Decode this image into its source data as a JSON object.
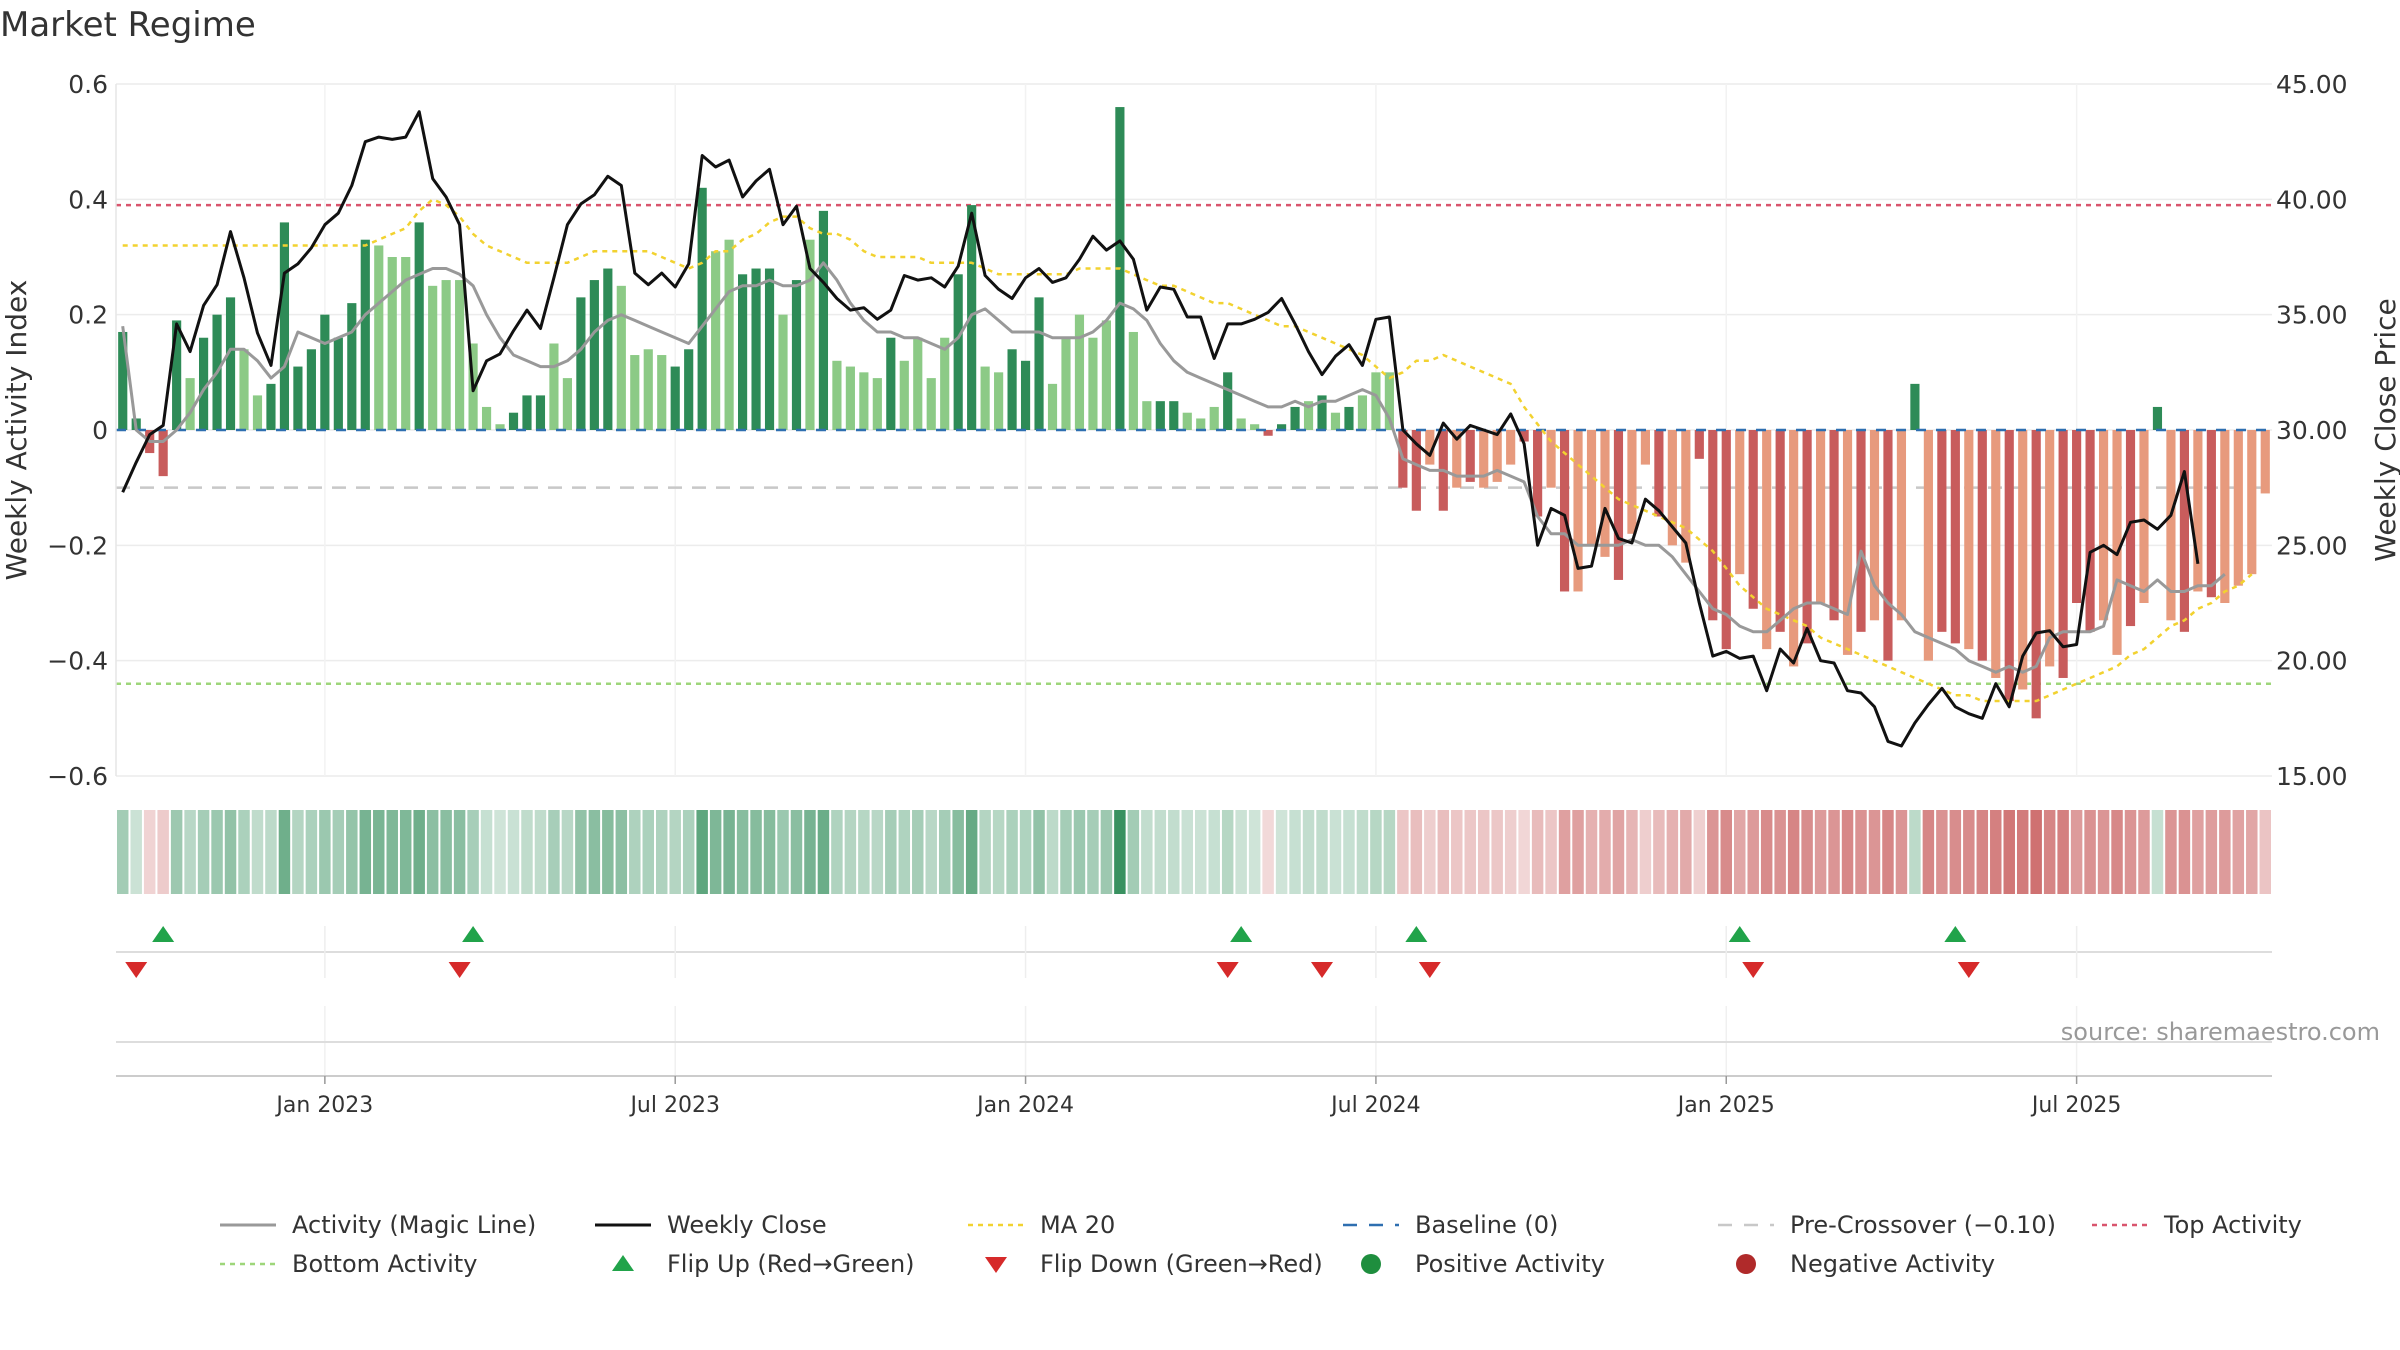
{
  "chart_data": {
    "type": "bar+line",
    "title": "Market Regime",
    "ylabel_left": "Weekly Activity Index",
    "ylabel_right": "Weekly Close Price",
    "ylim_left": [
      -0.6,
      0.6
    ],
    "ylim_right": [
      15.0,
      45.0
    ],
    "yticks_left": [
      0.6,
      0.4,
      0.2,
      0,
      -0.2,
      -0.4,
      -0.6
    ],
    "yticks_left_labels": [
      "0.6",
      "0.4",
      "0.2",
      "0",
      "−0.2",
      "−0.4",
      "−0.6"
    ],
    "yticks_right": [
      45,
      40,
      35,
      30,
      25,
      20,
      15
    ],
    "yticks_right_labels": [
      "45.00",
      "40.00",
      "35.00",
      "30.00",
      "25.00",
      "20.00",
      "15.00"
    ],
    "xtick_positions": [
      15,
      41,
      67,
      93,
      119,
      145
    ],
    "xtick_labels": [
      "Jan 2023",
      "Jul 2023",
      "Jan 2024",
      "Jul 2024",
      "Jan 2025",
      "Jul 2025"
    ],
    "levels": {
      "top_activity": 0.39,
      "bottom_activity": -0.44,
      "pre_crossover": -0.1,
      "baseline": 0
    },
    "activity": [
      0.17,
      0.02,
      -0.04,
      -0.08,
      0.19,
      0.09,
      0.16,
      0.2,
      0.23,
      0.14,
      0.06,
      0.08,
      0.36,
      0.11,
      0.14,
      0.2,
      0.16,
      0.22,
      0.33,
      0.32,
      0.3,
      0.3,
      0.36,
      0.25,
      0.26,
      0.26,
      0.15,
      0.04,
      0.01,
      0.03,
      0.06,
      0.06,
      0.15,
      0.09,
      0.23,
      0.26,
      0.28,
      0.25,
      0.13,
      0.14,
      0.13,
      0.11,
      0.14,
      0.42,
      0.31,
      0.33,
      0.27,
      0.28,
      0.28,
      0.2,
      0.26,
      0.33,
      0.38,
      0.12,
      0.11,
      0.1,
      0.09,
      0.16,
      0.12,
      0.16,
      0.09,
      0.16,
      0.27,
      0.39,
      0.11,
      0.1,
      0.14,
      0.12,
      0.23,
      0.08,
      0.16,
      0.2,
      0.16,
      0.19,
      0.56,
      0.17,
      0.05,
      0.05,
      0.05,
      0.03,
      0.02,
      0.04,
      0.1,
      0.02,
      0.01,
      -0.01,
      0.01,
      0.04,
      0.05,
      0.06,
      0.03,
      0.04,
      0.06,
      0.1,
      0.1,
      -0.1,
      -0.14,
      -0.06,
      -0.14,
      -0.1,
      -0.09,
      -0.1,
      -0.09,
      -0.06,
      -0.02,
      -0.15,
      -0.1,
      -0.28,
      -0.28,
      -0.2,
      -0.22,
      -0.26,
      -0.18,
      -0.06,
      -0.15,
      -0.2,
      -0.23,
      -0.05,
      -0.33,
      -0.38,
      -0.25,
      -0.31,
      -0.38,
      -0.35,
      -0.41,
      -0.37,
      -0.3,
      -0.33,
      -0.39,
      -0.35,
      -0.33,
      -0.4,
      -0.33,
      0.08,
      -0.4,
      -0.35,
      -0.37,
      -0.38,
      -0.4,
      -0.43,
      -0.47,
      -0.45,
      -0.5,
      -0.41,
      -0.43,
      -0.3,
      -0.35,
      -0.33,
      -0.39,
      -0.34,
      -0.3,
      0.04,
      -0.33,
      -0.35,
      -0.28,
      -0.29,
      -0.3,
      -0.27,
      -0.25,
      -0.11
    ],
    "activity_shade": [
      "d",
      "d",
      "d",
      "d",
      "d",
      "l",
      "d",
      "d",
      "d",
      "l",
      "l",
      "d",
      "d",
      "d",
      "d",
      "d",
      "d",
      "d",
      "d",
      "l",
      "l",
      "l",
      "d",
      "l",
      "l",
      "l",
      "l",
      "l",
      "l",
      "d",
      "d",
      "d",
      "l",
      "l",
      "d",
      "d",
      "d",
      "l",
      "l",
      "l",
      "l",
      "d",
      "d",
      "d",
      "l",
      "l",
      "d",
      "d",
      "d",
      "l",
      "d",
      "l",
      "d",
      "l",
      "l",
      "l",
      "l",
      "d",
      "l",
      "l",
      "l",
      "l",
      "d",
      "d",
      "l",
      "l",
      "d",
      "d",
      "d",
      "l",
      "l",
      "l",
      "l",
      "l",
      "d",
      "l",
      "l",
      "d",
      "d",
      "l",
      "l",
      "l",
      "d",
      "l",
      "l",
      "d",
      "d",
      "d",
      "l",
      "d",
      "l",
      "d",
      "l",
      "l",
      "l",
      "d",
      "d",
      "l",
      "d",
      "l",
      "d",
      "l",
      "l",
      "l",
      "d",
      "d",
      "l",
      "d",
      "l",
      "l",
      "l",
      "d",
      "l",
      "l",
      "d",
      "l",
      "l",
      "d",
      "d",
      "d",
      "l",
      "d",
      "l",
      "d",
      "l",
      "d",
      "l",
      "d",
      "l",
      "d",
      "l",
      "d",
      "l",
      "d",
      "l",
      "d",
      "d",
      "l",
      "d",
      "l",
      "d",
      "l",
      "d",
      "l",
      "d",
      "d",
      "d",
      "l",
      "l",
      "d",
      "l",
      "d",
      "l",
      "d",
      "l",
      "d",
      "l",
      "l",
      "l",
      "l",
      "l",
      "l",
      "l",
      "l"
    ],
    "magic_line": [
      0.18,
      0.0,
      -0.02,
      -0.02,
      0.0,
      0.03,
      0.07,
      0.1,
      0.14,
      0.14,
      0.12,
      0.09,
      0.11,
      0.17,
      0.16,
      0.15,
      0.16,
      0.17,
      0.2,
      0.22,
      0.24,
      0.26,
      0.27,
      0.28,
      0.28,
      0.27,
      0.25,
      0.2,
      0.16,
      0.13,
      0.12,
      0.11,
      0.11,
      0.12,
      0.14,
      0.17,
      0.19,
      0.2,
      0.19,
      0.18,
      0.17,
      0.16,
      0.15,
      0.18,
      0.21,
      0.24,
      0.25,
      0.25,
      0.26,
      0.25,
      0.25,
      0.26,
      0.29,
      0.26,
      0.22,
      0.19,
      0.17,
      0.17,
      0.16,
      0.16,
      0.15,
      0.14,
      0.16,
      0.2,
      0.21,
      0.19,
      0.17,
      0.17,
      0.17,
      0.16,
      0.16,
      0.16,
      0.17,
      0.19,
      0.22,
      0.21,
      0.19,
      0.15,
      0.12,
      0.1,
      0.09,
      0.08,
      0.07,
      0.06,
      0.05,
      0.04,
      0.04,
      0.05,
      0.04,
      0.05,
      0.05,
      0.06,
      0.07,
      0.06,
      0.02,
      -0.05,
      -0.06,
      -0.07,
      -0.07,
      -0.08,
      -0.08,
      -0.08,
      -0.07,
      -0.08,
      -0.09,
      -0.15,
      -0.18,
      -0.18,
      -0.2,
      -0.2,
      -0.2,
      -0.2,
      -0.19,
      -0.2,
      -0.2,
      -0.22,
      -0.25,
      -0.28,
      -0.31,
      -0.32,
      -0.34,
      -0.35,
      -0.35,
      -0.33,
      -0.31,
      -0.3,
      -0.3,
      -0.31,
      -0.32,
      -0.21,
      -0.27,
      -0.3,
      -0.32,
      -0.35,
      -0.36,
      -0.37,
      -0.38,
      -0.4,
      -0.41,
      -0.42,
      -0.41,
      -0.42,
      -0.41,
      -0.36,
      -0.35,
      -0.35,
      -0.35,
      -0.34,
      -0.26,
      -0.27,
      -0.28,
      -0.26,
      -0.28,
      -0.28,
      -0.27,
      -0.27,
      -0.25
    ],
    "weekly_close": [
      27.3,
      28.6,
      29.8,
      30.2,
      34.6,
      33.4,
      35.4,
      36.3,
      38.6,
      36.6,
      34.2,
      32.8,
      36.8,
      37.2,
      37.9,
      38.9,
      39.4,
      40.6,
      42.5,
      42.7,
      42.6,
      42.7,
      43.8,
      40.9,
      40.1,
      38.9,
      31.7,
      33.0,
      33.3,
      34.3,
      35.2,
      34.4,
      36.6,
      38.9,
      39.8,
      40.2,
      41.0,
      40.6,
      36.8,
      36.3,
      36.8,
      36.2,
      37.2,
      41.9,
      41.4,
      41.7,
      40.1,
      40.8,
      41.3,
      38.9,
      39.7,
      37.0,
      36.4,
      35.7,
      35.2,
      35.3,
      34.8,
      35.2,
      36.7,
      36.5,
      36.6,
      36.2,
      37.1,
      39.4,
      36.7,
      36.1,
      35.7,
      36.6,
      37.0,
      36.4,
      36.6,
      37.4,
      38.4,
      37.8,
      38.2,
      37.4,
      35.2,
      36.2,
      36.1,
      34.9,
      34.9,
      33.1,
      34.6,
      34.6,
      34.8,
      35.1,
      35.7,
      34.6,
      33.4,
      32.4,
      33.2,
      33.7,
      32.8,
      34.8,
      34.9,
      30.0,
      29.4,
      28.9,
      30.3,
      29.6,
      30.2,
      30.0,
      29.8,
      30.7,
      29.4,
      25.0,
      26.6,
      26.3,
      24.0,
      24.1,
      26.6,
      25.3,
      25.1,
      27.0,
      26.5,
      25.8,
      25.1,
      22.5,
      20.2,
      20.4,
      20.1,
      20.2,
      18.7,
      20.5,
      19.9,
      21.4,
      20.0,
      19.9,
      18.7,
      18.6,
      18.0,
      16.5,
      16.3,
      17.3,
      18.1,
      18.8,
      18.0,
      17.7,
      17.5,
      19.0,
      18.0,
      20.2,
      21.2,
      21.3,
      20.6,
      20.7,
      24.7,
      25.0,
      24.6,
      26.0,
      26.1,
      25.7,
      26.3,
      28.2,
      24.2
    ],
    "ma20": [
      0.32,
      0.32,
      0.32,
      0.32,
      0.32,
      0.32,
      0.32,
      0.32,
      0.32,
      0.32,
      0.32,
      0.32,
      0.32,
      0.32,
      0.32,
      0.32,
      0.32,
      0.32,
      0.32,
      0.33,
      0.34,
      0.35,
      0.38,
      0.4,
      0.39,
      0.37,
      0.34,
      0.32,
      0.31,
      0.3,
      0.29,
      0.29,
      0.29,
      0.29,
      0.3,
      0.31,
      0.31,
      0.31,
      0.31,
      0.31,
      0.3,
      0.29,
      0.28,
      0.29,
      0.31,
      0.31,
      0.33,
      0.34,
      0.36,
      0.37,
      0.37,
      0.35,
      0.34,
      0.34,
      0.33,
      0.31,
      0.3,
      0.3,
      0.3,
      0.3,
      0.29,
      0.29,
      0.29,
      0.29,
      0.28,
      0.27,
      0.27,
      0.27,
      0.27,
      0.27,
      0.27,
      0.28,
      0.28,
      0.28,
      0.28,
      0.27,
      0.26,
      0.25,
      0.25,
      0.24,
      0.23,
      0.22,
      0.22,
      0.21,
      0.2,
      0.19,
      0.18,
      0.18,
      0.17,
      0.16,
      0.15,
      0.14,
      0.13,
      0.11,
      0.09,
      0.1,
      0.12,
      0.12,
      0.13,
      0.12,
      0.11,
      0.1,
      0.09,
      0.08,
      0.04,
      0.01,
      -0.02,
      -0.04,
      -0.06,
      -0.08,
      -0.1,
      -0.12,
      -0.13,
      -0.14,
      -0.15,
      -0.16,
      -0.17,
      -0.19,
      -0.21,
      -0.24,
      -0.27,
      -0.29,
      -0.31,
      -0.32,
      -0.33,
      -0.34,
      -0.36,
      -0.37,
      -0.38,
      -0.39,
      -0.4,
      -0.41,
      -0.42,
      -0.43,
      -0.44,
      -0.45,
      -0.46,
      -0.46,
      -0.47,
      -0.47,
      -0.47,
      -0.47,
      -0.47,
      -0.46,
      -0.45,
      -0.44,
      -0.43,
      -0.42,
      -0.41,
      -0.39,
      -0.38,
      -0.36,
      -0.34,
      -0.33,
      -0.31,
      -0.3,
      -0.28,
      -0.27,
      -0.25
    ],
    "flip_up_weeks": [
      3,
      26,
      83,
      96,
      120,
      136
    ],
    "flip_down_weeks": [
      1,
      25,
      82,
      89,
      97,
      121,
      137
    ],
    "source": "source: sharemaestro.com",
    "legend": [
      {
        "label": "Activity (Magic Line)",
        "marker": "line",
        "color": "#999999"
      },
      {
        "label": "Weekly Close",
        "marker": "line",
        "color": "#111111"
      },
      {
        "label": "MA 20",
        "marker": "dotted",
        "color": "#f2d230"
      },
      {
        "label": "Baseline (0)",
        "marker": "dashed",
        "color": "#2e6fb0"
      },
      {
        "label": "Pre-Crossover (−0.10)",
        "marker": "dashed",
        "color": "#c8c8c8"
      },
      {
        "label": "Top Activity",
        "marker": "dotted",
        "color": "#d9556e"
      },
      {
        "label": "Bottom Activity",
        "marker": "dotted",
        "color": "#9ed67a"
      },
      {
        "label": "Flip Up (Red→Green)",
        "marker": "triangle-up",
        "color": "#21a34a"
      },
      {
        "label": "Flip Down (Green→Red)",
        "marker": "triangle-down",
        "color": "#d62a2a"
      },
      {
        "label": "Positive Activity",
        "marker": "circle",
        "color": "#1e8e3e"
      },
      {
        "label": "Negative Activity",
        "marker": "circle",
        "color": "#b02a2a"
      }
    ]
  },
  "colors": {
    "pos_dark": "#2e8b57",
    "pos_light": "#8cca86",
    "neg_dark": "#c85c5c",
    "neg_light": "#e79a7d",
    "close": "#111111",
    "magic": "#999999",
    "ma20": "#f2d230",
    "top": "#d9556e",
    "bottom": "#9ed67a",
    "pre": "#c8c8c8",
    "baseline": "#2e6fb0",
    "flip_up": "#21a34a",
    "flip_down": "#d62a2a"
  }
}
